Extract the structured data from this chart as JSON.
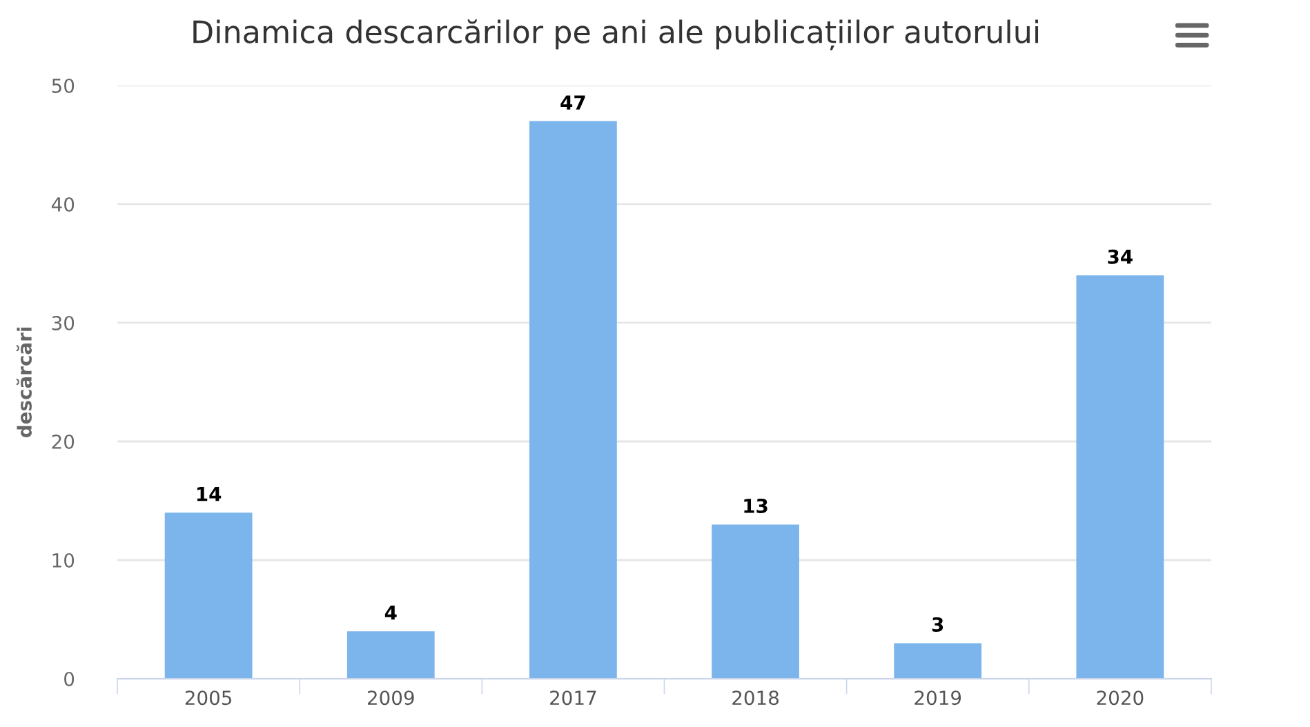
{
  "chart_data": {
    "type": "bar",
    "title": "Dinamica descarcărilor pe ani ale publicațiilor autorului",
    "ylabel": "descărcări",
    "categories": [
      "2005",
      "2009",
      "2017",
      "2018",
      "2019",
      "2020"
    ],
    "values": [
      14,
      4,
      47,
      13,
      3,
      34
    ],
    "color": "#7cb5ec",
    "ylim": [
      0,
      50
    ],
    "yticks": [
      0,
      10,
      20,
      30,
      40,
      50
    ],
    "grid": "y",
    "data_labels": true,
    "legend": false
  }
}
